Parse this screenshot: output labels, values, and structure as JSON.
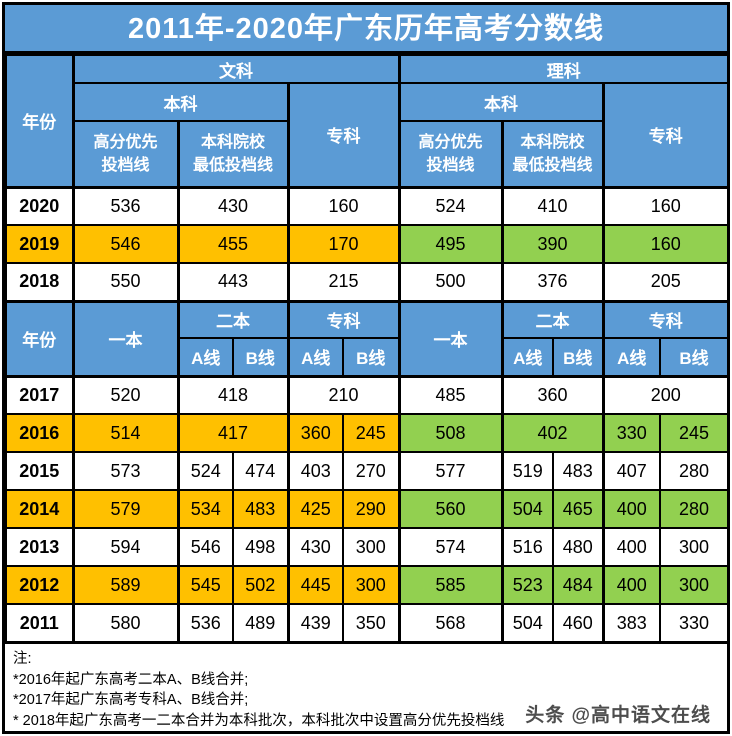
{
  "chart_data": {
    "type": "table",
    "title": "2011年-2020年广东历年高考分数线",
    "header": {
      "year": "年份",
      "wenke": "文科",
      "like": "理科",
      "benke": "本科",
      "zhuanke": "专科",
      "gaofen_line": "高分优先\n投档线",
      "zuidi_line": "本科院校\n最低投档线",
      "yiben": "一本",
      "erben": "二本",
      "a_line": "A线",
      "b_line": "B线"
    },
    "section1_rows": [
      {
        "year": "2020",
        "highlight": false,
        "cells": [
          {
            "v": "536",
            "s": 1
          },
          {
            "v": "430",
            "s": 2
          },
          {
            "v": "160",
            "s": 2
          },
          {
            "v": "524",
            "s": 1
          },
          {
            "v": "410",
            "s": 2
          },
          {
            "v": "160",
            "s": 2
          }
        ]
      },
      {
        "year": "2019",
        "highlight": true,
        "cells": [
          {
            "v": "546",
            "s": 1
          },
          {
            "v": "455",
            "s": 2
          },
          {
            "v": "170",
            "s": 2
          },
          {
            "v": "495",
            "s": 1
          },
          {
            "v": "390",
            "s": 2
          },
          {
            "v": "160",
            "s": 2
          }
        ]
      },
      {
        "year": "2018",
        "highlight": false,
        "cells": [
          {
            "v": "550",
            "s": 1
          },
          {
            "v": "443",
            "s": 2
          },
          {
            "v": "215",
            "s": 2
          },
          {
            "v": "500",
            "s": 1
          },
          {
            "v": "376",
            "s": 2
          },
          {
            "v": "205",
            "s": 2
          }
        ]
      }
    ],
    "section2_rows": [
      {
        "year": "2017",
        "highlight": false,
        "cells": [
          {
            "v": "520",
            "s": 1
          },
          {
            "v": "418",
            "s": 2
          },
          {
            "v": "210",
            "s": 2
          },
          {
            "v": "485",
            "s": 1
          },
          {
            "v": "360",
            "s": 2
          },
          {
            "v": "200",
            "s": 2
          }
        ]
      },
      {
        "year": "2016",
        "highlight": true,
        "cells": [
          {
            "v": "514",
            "s": 1
          },
          {
            "v": "417",
            "s": 2
          },
          {
            "v": "360",
            "s": 1
          },
          {
            "v": "245",
            "s": 1
          },
          {
            "v": "508",
            "s": 1
          },
          {
            "v": "402",
            "s": 2
          },
          {
            "v": "330",
            "s": 1
          },
          {
            "v": "245",
            "s": 1
          }
        ]
      },
      {
        "year": "2015",
        "highlight": false,
        "cells": [
          {
            "v": "573",
            "s": 1
          },
          {
            "v": "524",
            "s": 1
          },
          {
            "v": "474",
            "s": 1
          },
          {
            "v": "403",
            "s": 1
          },
          {
            "v": "270",
            "s": 1
          },
          {
            "v": "577",
            "s": 1
          },
          {
            "v": "519",
            "s": 1
          },
          {
            "v": "483",
            "s": 1
          },
          {
            "v": "407",
            "s": 1
          },
          {
            "v": "280",
            "s": 1
          }
        ]
      },
      {
        "year": "2014",
        "highlight": true,
        "cells": [
          {
            "v": "579",
            "s": 1
          },
          {
            "v": "534",
            "s": 1
          },
          {
            "v": "483",
            "s": 1
          },
          {
            "v": "425",
            "s": 1
          },
          {
            "v": "290",
            "s": 1
          },
          {
            "v": "560",
            "s": 1
          },
          {
            "v": "504",
            "s": 1
          },
          {
            "v": "465",
            "s": 1
          },
          {
            "v": "400",
            "s": 1
          },
          {
            "v": "280",
            "s": 1
          }
        ]
      },
      {
        "year": "2013",
        "highlight": false,
        "cells": [
          {
            "v": "594",
            "s": 1
          },
          {
            "v": "546",
            "s": 1
          },
          {
            "v": "498",
            "s": 1
          },
          {
            "v": "430",
            "s": 1
          },
          {
            "v": "300",
            "s": 1
          },
          {
            "v": "574",
            "s": 1
          },
          {
            "v": "516",
            "s": 1
          },
          {
            "v": "480",
            "s": 1
          },
          {
            "v": "400",
            "s": 1
          },
          {
            "v": "300",
            "s": 1
          }
        ]
      },
      {
        "year": "2012",
        "highlight": true,
        "cells": [
          {
            "v": "589",
            "s": 1
          },
          {
            "v": "545",
            "s": 1
          },
          {
            "v": "502",
            "s": 1
          },
          {
            "v": "445",
            "s": 1
          },
          {
            "v": "300",
            "s": 1
          },
          {
            "v": "585",
            "s": 1
          },
          {
            "v": "523",
            "s": 1
          },
          {
            "v": "484",
            "s": 1
          },
          {
            "v": "400",
            "s": 1
          },
          {
            "v": "300",
            "s": 1
          }
        ]
      },
      {
        "year": "2011",
        "highlight": false,
        "cells": [
          {
            "v": "580",
            "s": 1
          },
          {
            "v": "536",
            "s": 1
          },
          {
            "v": "489",
            "s": 1
          },
          {
            "v": "439",
            "s": 1
          },
          {
            "v": "350",
            "s": 1
          },
          {
            "v": "568",
            "s": 1
          },
          {
            "v": "504",
            "s": 1
          },
          {
            "v": "460",
            "s": 1
          },
          {
            "v": "383",
            "s": 1
          },
          {
            "v": "330",
            "s": 1
          }
        ]
      }
    ]
  },
  "notes": {
    "label": "注:",
    "items": [
      "*2016年起广东高考二本A、B线合并;",
      "*2017年起广东高考专科A、B线合并;",
      "* 2018年起广东高考一二本合并为本科批次，本科批次中设置高分优先投档线"
    ]
  },
  "watermark": "头条 @高中语文在线",
  "colors": {
    "header_blue": "#5B9BD5",
    "highlight_orange": "#FFC000",
    "highlight_green": "#92D050",
    "border": "#000000",
    "title_text": "#FFFFFF"
  }
}
